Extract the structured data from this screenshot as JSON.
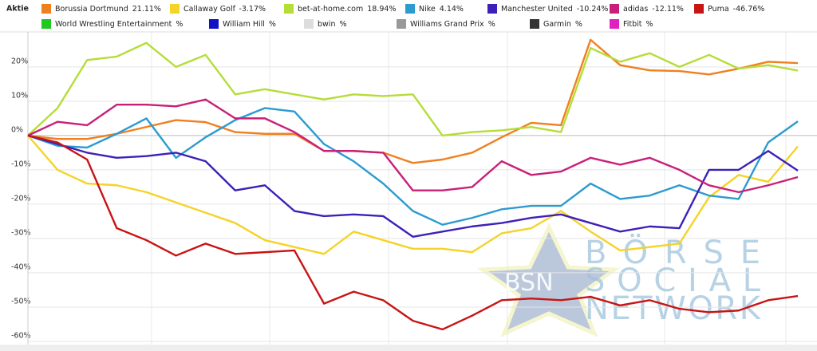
{
  "chart_data": {
    "type": "line",
    "legend_title": "Aktie",
    "categories": [
      null,
      null,
      null,
      null,
      null,
      null,
      null,
      null,
      null,
      null,
      null,
      null,
      null,
      null,
      null,
      null,
      null,
      null,
      null,
      null,
      null,
      null,
      null,
      null,
      null,
      null,
      null
    ],
    "ylim": [
      -62.8,
      30.2
    ],
    "yticks": [
      {
        "value": 20,
        "label": "20%"
      },
      {
        "value": 10,
        "label": "10%"
      },
      {
        "value": 0,
        "label": "0%"
      },
      {
        "value": -10,
        "label": "-10%"
      },
      {
        "value": -20,
        "label": "-20%"
      },
      {
        "value": -30,
        "label": "-30%"
      },
      {
        "value": -40,
        "label": "-40%"
      },
      {
        "value": -50,
        "label": "-50%"
      },
      {
        "value": -60,
        "label": "-60%"
      }
    ],
    "grid": true,
    "series": [
      {
        "name": "Borussia Dortmund",
        "legend_label": "21.11%",
        "color": "#f07f1f",
        "values": [
          0,
          -1,
          -1,
          0.5,
          2.5,
          4.5,
          3.9,
          1,
          0.5,
          0.5,
          -4.5,
          -4.5,
          -5,
          -8,
          -7,
          -5,
          -0.5,
          3.7,
          3,
          27.9,
          20.5,
          19,
          18.8,
          17.8,
          19.5,
          21.5,
          21.11
        ]
      },
      {
        "name": "Callaway Golf",
        "legend_label": "-3.17%",
        "color": "#f5d327",
        "values": [
          0,
          -10,
          -14,
          -14.5,
          -16.5,
          -19.5,
          -22.5,
          -25.5,
          -30.5,
          -32.5,
          -34.5,
          -28,
          -30.5,
          -33,
          -33,
          -34,
          -28.5,
          -27,
          -22,
          -28,
          -33.5,
          -32.5,
          -31.5,
          -18,
          -11.5,
          -13.5,
          -3.17
        ]
      },
      {
        "name": "bet-at-home.com",
        "legend_label": "18.94%",
        "color": "#b5dd37",
        "values": [
          0,
          8,
          22,
          23,
          27,
          20,
          23.5,
          12,
          13.5,
          12,
          10.5,
          12,
          11.5,
          12,
          0,
          1,
          1.5,
          2.5,
          1,
          25.5,
          21.5,
          24,
          20,
          23.5,
          19.5,
          20.5,
          18.94
        ]
      },
      {
        "name": "Nike",
        "legend_label": "4.14%",
        "color": "#2b9bd0",
        "values": [
          0,
          -3,
          -3.5,
          0.5,
          5,
          -6.5,
          -0.5,
          4.5,
          8,
          7,
          -2.5,
          -7.5,
          -14,
          -22,
          -26,
          -24,
          -21.5,
          -20.5,
          -20.5,
          -14,
          -18.5,
          -17.5,
          -14.5,
          -17.5,
          -18.5,
          -2,
          4.14
        ]
      },
      {
        "name": "Manchester United",
        "legend_label": "-10.24%",
        "color": "#3e20b8",
        "values": [
          0,
          -2.5,
          -5,
          -6.5,
          -6,
          -5,
          -7.5,
          -16,
          -14.5,
          -22,
          -23.5,
          -23,
          -23.5,
          -29.5,
          -28,
          -26.5,
          -25.5,
          -24,
          -23,
          -25.5,
          -28,
          -26.5,
          -27,
          -10,
          -10,
          -4.5,
          -10.24
        ]
      },
      {
        "name": "adidas",
        "legend_label": "-12.11%",
        "color": "#c8207a",
        "values": [
          0,
          4,
          3,
          9,
          9,
          8.5,
          10.5,
          5,
          5,
          1,
          -4.5,
          -4.5,
          -5,
          -16,
          -16,
          -15,
          -7.5,
          -11.5,
          -10.5,
          -6.5,
          -8.5,
          -6.5,
          -10,
          -14.5,
          -16.5,
          -14.5,
          -12.11
        ]
      },
      {
        "name": "Puma",
        "legend_label": "-46.76%",
        "color": "#c81414",
        "values": [
          0,
          -2,
          -7,
          -27,
          -30.5,
          -35,
          -31.5,
          -34.5,
          -34,
          -33.5,
          -49,
          -45.5,
          -48,
          -54,
          -56.5,
          -52.5,
          -48,
          -47.5,
          -48,
          -47,
          -49.5,
          -48,
          -50.5,
          -51.5,
          -51,
          -48,
          -46.76
        ]
      }
    ],
    "legend_only": [
      {
        "name": "World Wrestling Entertainment",
        "legend_label": "%",
        "color": "#21c821"
      },
      {
        "name": "William Hill",
        "legend_label": "%",
        "color": "#1010c8"
      },
      {
        "name": "bwin",
        "legend_label": "%",
        "color": "#dddddd"
      },
      {
        "name": "Williams Grand Prix",
        "legend_label": "%",
        "color": "#999999"
      },
      {
        "name": "Garmin",
        "legend_label": "%",
        "color": "#333333"
      },
      {
        "name": "Fitbit",
        "legend_label": "%",
        "color": "#e020c0"
      }
    ],
    "watermark": {
      "logo": "BSN",
      "lines": [
        "BÖRSE",
        "SOCIAL",
        "NETWORK"
      ]
    }
  }
}
